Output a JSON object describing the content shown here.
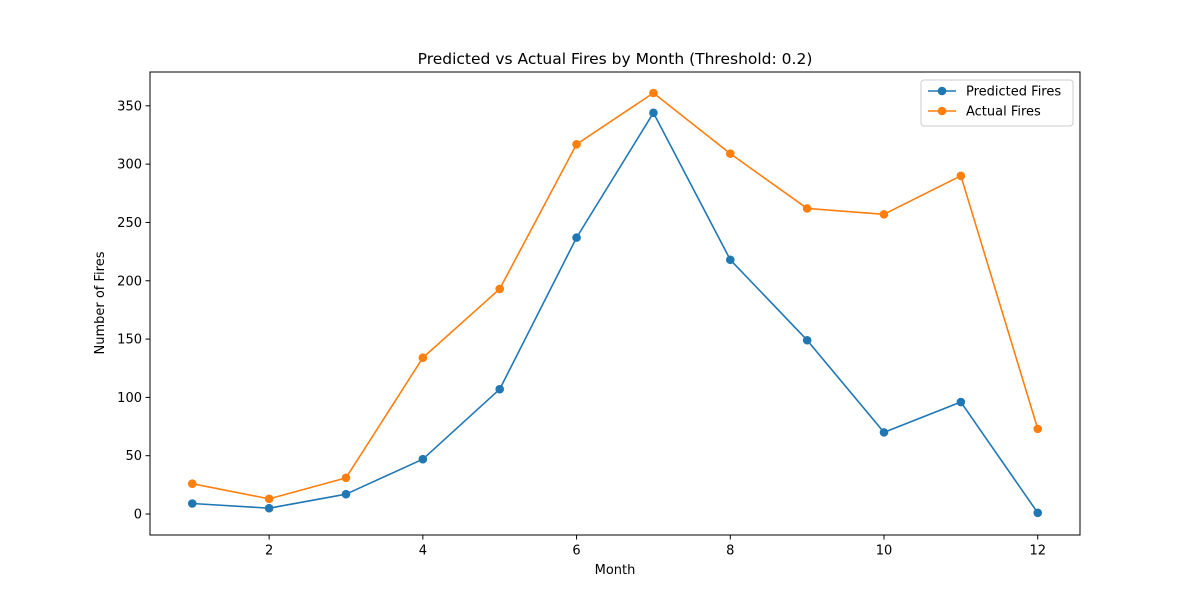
{
  "chart_data": {
    "type": "line",
    "title": "Predicted vs Actual Fires by Month (Threshold: 0.2)",
    "xlabel": "Month",
    "ylabel": "Number of Fires",
    "x": [
      1,
      2,
      3,
      4,
      5,
      6,
      7,
      8,
      9,
      10,
      11,
      12
    ],
    "xlim": [
      0.45,
      12.55
    ],
    "ylim": [
      -18,
      379
    ],
    "xticks": [
      2,
      4,
      6,
      8,
      10,
      12
    ],
    "yticks": [
      0,
      50,
      100,
      150,
      200,
      250,
      300,
      350
    ],
    "grid": false,
    "legend_position": "top-right",
    "series": [
      {
        "name": "Predicted Fires",
        "color": "#1f77b4",
        "marker": "circle",
        "values": [
          9,
          5,
          17,
          47,
          107,
          237,
          344,
          218,
          149,
          70,
          96,
          1
        ]
      },
      {
        "name": "Actual Fires",
        "color": "#ff7f0e",
        "marker": "circle",
        "values": [
          26,
          13,
          31,
          134,
          193,
          317,
          361,
          309,
          262,
          257,
          290,
          73
        ]
      }
    ]
  }
}
